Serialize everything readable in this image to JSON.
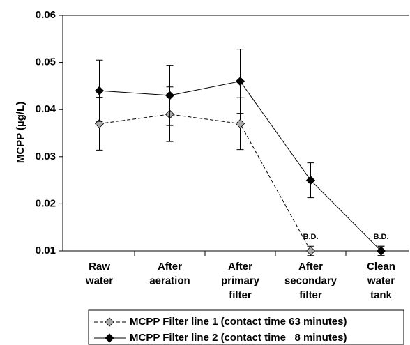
{
  "chart_data": {
    "type": "line",
    "ylabel": "MCPP (µg/L)",
    "categories": [
      "Raw water",
      "After aeration",
      "After primary filter",
      "After secondary filter",
      "Clean water tank"
    ],
    "ylim": [
      0.01,
      0.06
    ],
    "yticks": [
      0.01,
      0.02,
      0.03,
      0.04,
      0.05,
      0.06
    ],
    "series": [
      {
        "name": "MCPP Filter line 1 (contact time 63 minutes)",
        "color": "#aaaaaa",
        "dash": true,
        "values": [
          0.037,
          0.039,
          0.037,
          0.01,
          0.01
        ],
        "errors": [
          0.0056,
          0.0058,
          0.0055,
          0.001,
          0.001
        ]
      },
      {
        "name": "MCPP Filter line 2 (contact time   8 minutes)",
        "color": "#000000",
        "dash": false,
        "values": [
          0.044,
          0.043,
          0.046,
          0.025,
          0.01
        ],
        "errors": [
          0.0065,
          0.0064,
          0.0068,
          0.0037,
          0.001
        ]
      }
    ],
    "annotations": [
      {
        "text": "B.D.",
        "at": "After secondary filter"
      },
      {
        "text": "B.D.",
        "at": "Clean water tank"
      }
    ]
  }
}
